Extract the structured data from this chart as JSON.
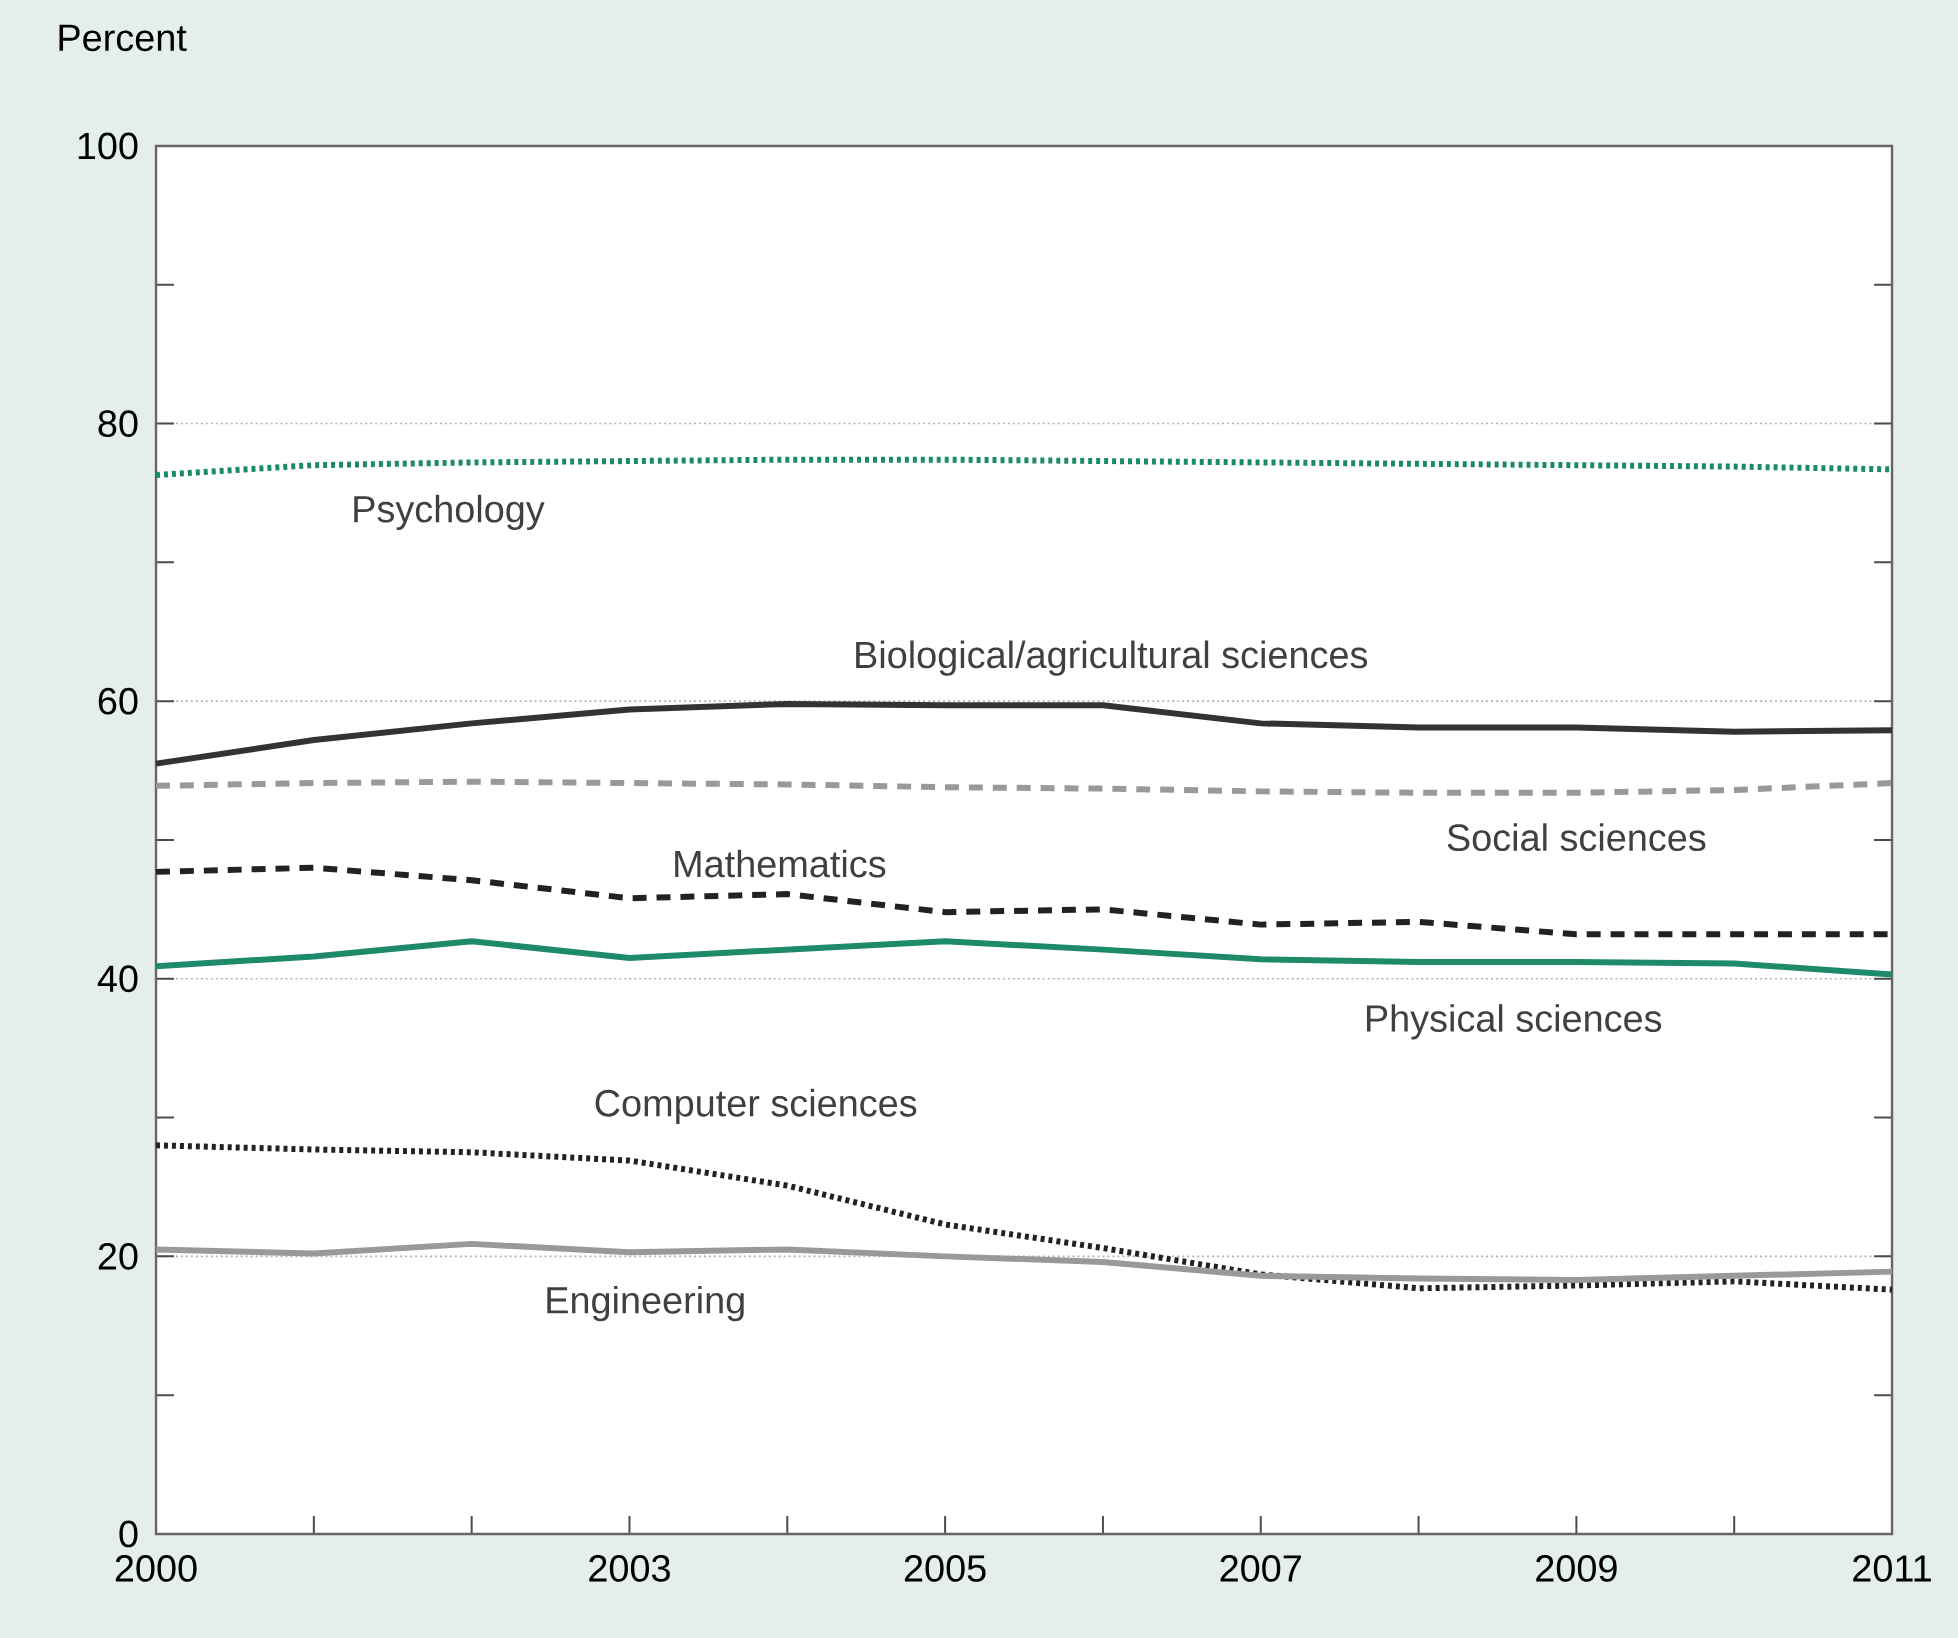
{
  "chart_data": {
    "type": "line",
    "ylabel": "Percent",
    "x": [
      2000,
      2001,
      2002,
      2003,
      2004,
      2005,
      2006,
      2007,
      2008,
      2009,
      2010,
      2011
    ],
    "xlim": [
      2000,
      2011
    ],
    "xticks": [
      2000,
      {
        "value": 2001,
        "label": null
      },
      {
        "value": 2002,
        "label": null
      },
      2003,
      {
        "value": 2004,
        "label": null
      },
      2005,
      {
        "value": 2006,
        "label": null
      },
      2007,
      {
        "value": 2008,
        "label": null
      },
      2009,
      {
        "value": 2010,
        "label": null
      },
      2011
    ],
    "ylim": [
      0,
      100
    ],
    "yticks": [
      0,
      {
        "value": 10,
        "label": null
      },
      20,
      {
        "value": 30,
        "label": null
      },
      40,
      {
        "value": 50,
        "label": null
      },
      60,
      {
        "value": 70,
        "label": null
      },
      80,
      {
        "value": 90,
        "label": null
      },
      100
    ],
    "grid": "y",
    "series": [
      {
        "name": "Psychology",
        "color": "#1a8a68",
        "line_style": "dotted",
        "values": [
          76.3,
          77.0,
          77.2,
          77.3,
          77.4,
          77.4,
          77.3,
          77.2,
          77.1,
          77.0,
          76.9,
          76.7
        ]
      },
      {
        "name": "Biological/agricultural sciences",
        "color": "#333333",
        "line_style": "solid",
        "values": [
          55.5,
          57.2,
          58.4,
          59.4,
          59.8,
          59.7,
          59.7,
          58.4,
          58.1,
          58.1,
          57.8,
          57.9
        ]
      },
      {
        "name": "Social sciences",
        "color": "#999999",
        "line_style": "dashed",
        "values": [
          53.9,
          54.1,
          54.2,
          54.1,
          54.0,
          53.8,
          53.7,
          53.5,
          53.4,
          53.4,
          53.6,
          54.1
        ]
      },
      {
        "name": "Mathematics",
        "color": "#222222",
        "line_style": "dashed",
        "values": [
          47.7,
          48.0,
          47.1,
          45.8,
          46.1,
          44.8,
          45.0,
          43.9,
          44.1,
          43.2,
          43.2,
          43.2
        ]
      },
      {
        "name": "Physical sciences",
        "color": "#1f8a6a",
        "line_style": "solid",
        "values": [
          40.9,
          41.6,
          42.7,
          41.5,
          42.1,
          42.7,
          42.1,
          41.4,
          41.2,
          41.2,
          41.1,
          40.3
        ]
      },
      {
        "name": "Computer sciences",
        "color": "#222222",
        "line_style": "dotted",
        "values": [
          28.0,
          27.7,
          27.5,
          26.9,
          25.1,
          22.3,
          20.6,
          18.7,
          17.7,
          17.9,
          18.2,
          17.6
        ]
      },
      {
        "name": "Engineering",
        "color": "#999999",
        "line_style": "solid",
        "values": [
          20.5,
          20.2,
          20.9,
          20.3,
          20.5,
          20.0,
          19.6,
          18.6,
          18.4,
          18.3,
          18.6,
          18.9
        ]
      }
    ]
  }
}
